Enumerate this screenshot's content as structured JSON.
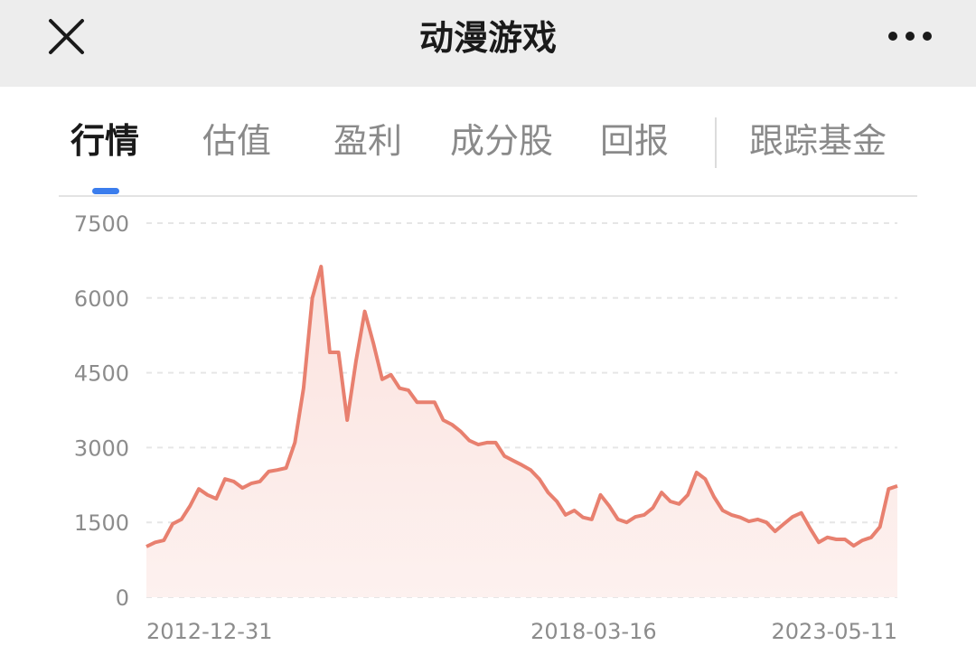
{
  "header": {
    "title": "动漫游戏"
  },
  "tabs": [
    "行情",
    "估值",
    "盈利",
    "成分股",
    "回报",
    "跟踪基金"
  ],
  "chart_data": {
    "type": "line",
    "categories": [
      "2012-12-31",
      null,
      null,
      null,
      null,
      null,
      null,
      null,
      null,
      null,
      null,
      null,
      null,
      null,
      null,
      null,
      null,
      null,
      null,
      null,
      null,
      null,
      null,
      null,
      null,
      null,
      null,
      null,
      null,
      null,
      null,
      null,
      null,
      null,
      null,
      null,
      null,
      null,
      null,
      null,
      null,
      null,
      null,
      null,
      "2018-03-16",
      null,
      null,
      null,
      null,
      null,
      null,
      null,
      null,
      null,
      null,
      null,
      null,
      null,
      null,
      null,
      null,
      null,
      null,
      null,
      null,
      null,
      null,
      null,
      null,
      null,
      null,
      null,
      null,
      null,
      null,
      null,
      null,
      null,
      null,
      null,
      null,
      null,
      null,
      null,
      null,
      null,
      "2023-05-11"
    ],
    "values": [
      1015,
      1100,
      1140,
      1470,
      1560,
      1830,
      2170,
      2050,
      1975,
      2370,
      2320,
      2190,
      2280,
      2320,
      2520,
      2550,
      2590,
      3100,
      4190,
      6000,
      6630,
      4910,
      4910,
      3550,
      4730,
      5730,
      5090,
      4370,
      4460,
      4190,
      4150,
      3910,
      3910,
      3910,
      3550,
      3460,
      3320,
      3140,
      3060,
      3100,
      3100,
      2830,
      2740,
      2650,
      2550,
      2370,
      2100,
      1920,
      1650,
      1740,
      1600,
      1560,
      2050,
      1830,
      1560,
      1500,
      1610,
      1650,
      1790,
      2100,
      1920,
      1870,
      2050,
      2500,
      2370,
      2010,
      1740,
      1650,
      1600,
      1520,
      1560,
      1500,
      1320,
      1470,
      1610,
      1690,
      1380,
      1100,
      1200,
      1160,
      1160,
      1030,
      1140,
      1200,
      1410,
      2170,
      2230
    ],
    "color": "#e8806f",
    "ylim": [
      0,
      7500
    ],
    "yticks": [
      0,
      1500,
      3000,
      4500,
      6000,
      7500
    ],
    "grid": true
  }
}
